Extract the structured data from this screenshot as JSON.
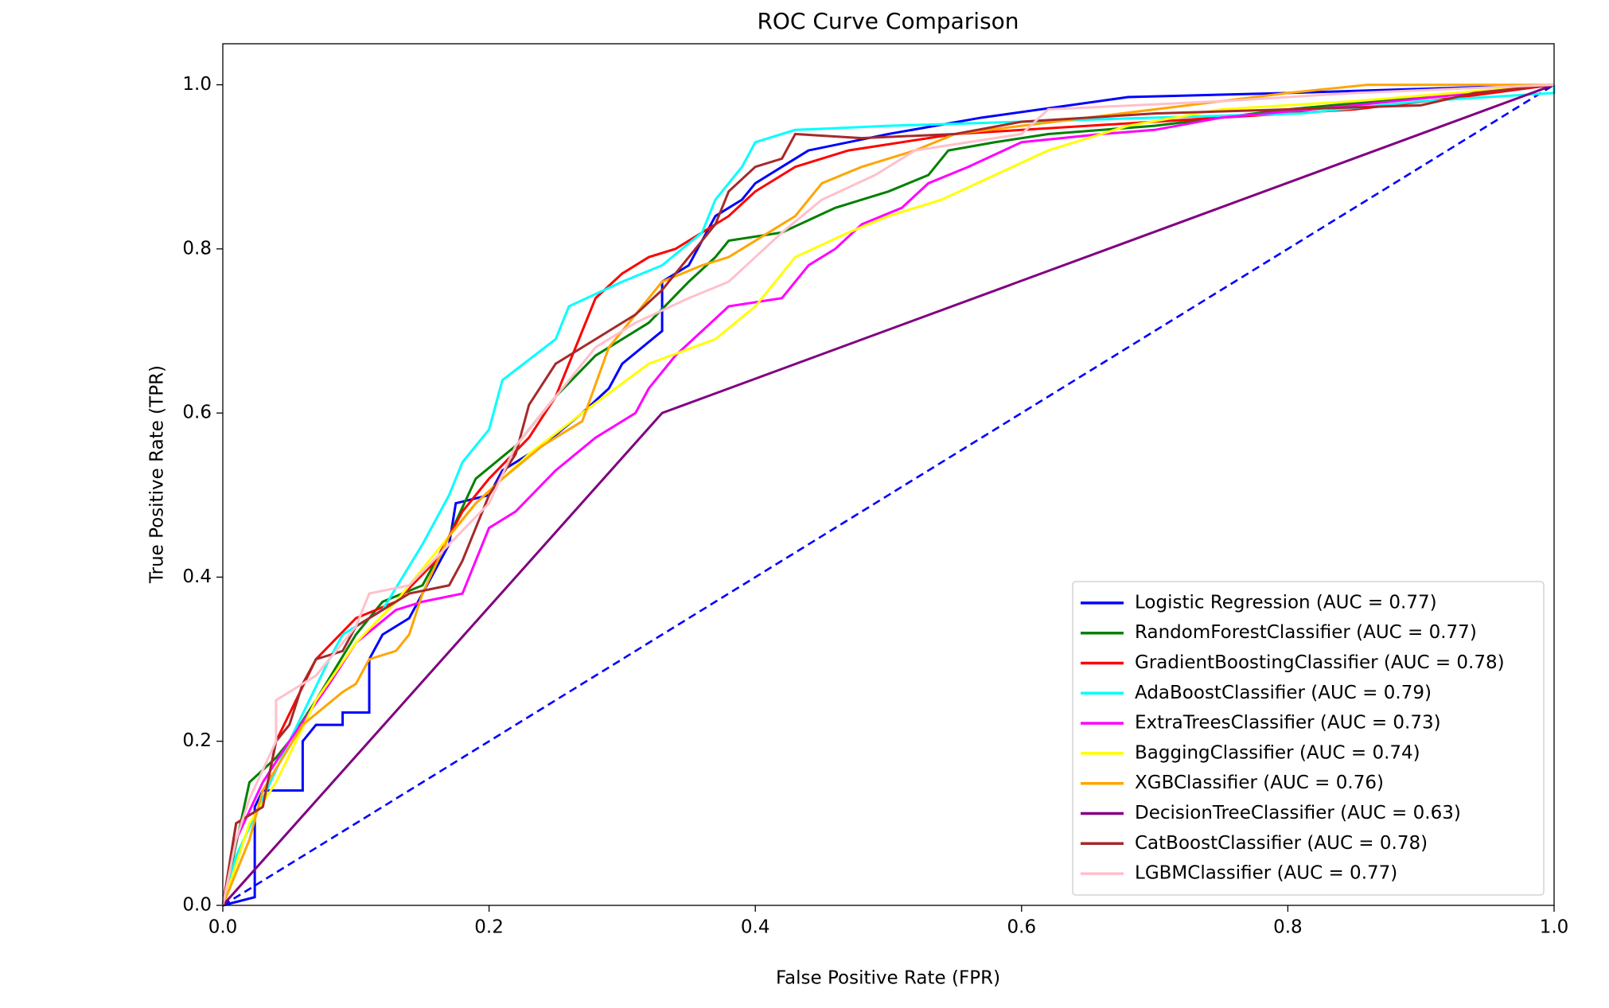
{
  "chart_data": {
    "type": "line",
    "title": "ROC Curve Comparison",
    "x_label": "False Positive Rate (FPR)",
    "y_label": "True Positive Rate (TPR)",
    "xlim": [
      0,
      1
    ],
    "ylim": [
      0,
      1.05
    ],
    "xticks": [
      {
        "value": 0,
        "label": "0.0"
      },
      {
        "value": 0.2,
        "label": "0.2"
      },
      {
        "value": 0.4,
        "label": "0.4"
      },
      {
        "value": 0.6,
        "label": "0.6"
      },
      {
        "value": 0.8,
        "label": "0.8"
      },
      {
        "value": 1,
        "label": "1.0"
      }
    ],
    "yticks": [
      {
        "value": 0,
        "label": "0.0"
      },
      {
        "value": 0.2,
        "label": "0.2"
      },
      {
        "value": 0.4,
        "label": "0.4"
      },
      {
        "value": 0.6,
        "label": "0.6"
      },
      {
        "value": 0.8,
        "label": "0.8"
      },
      {
        "value": 1,
        "label": "1.0"
      }
    ],
    "legend": "lower right",
    "series": [
      {
        "name": "Logistic Regression (AUC = 0.77)",
        "color": "blue",
        "x": [
          0,
          0.024,
          0.024,
          0.03,
          0.06,
          0.06,
          0.07,
          0.09,
          0.09,
          0.11,
          0.11,
          0.12,
          0.14,
          0.15,
          0.17,
          0.175,
          0.2,
          0.21,
          0.24,
          0.27,
          0.29,
          0.3,
          0.33,
          0.33,
          0.35,
          0.37,
          0.39,
          0.4,
          0.42,
          0.44,
          0.5,
          0.57,
          0.68,
          0.8,
          0.9,
          1
        ],
        "values": [
          0,
          0.01,
          0.12,
          0.14,
          0.14,
          0.2,
          0.22,
          0.22,
          0.235,
          0.235,
          0.3,
          0.33,
          0.35,
          0.38,
          0.44,
          0.49,
          0.5,
          0.53,
          0.56,
          0.6,
          0.63,
          0.66,
          0.7,
          0.76,
          0.78,
          0.84,
          0.86,
          0.88,
          0.9,
          0.92,
          0.94,
          0.96,
          0.985,
          0.99,
          0.995,
          1
        ]
      },
      {
        "name": "RandomForestClassifier (AUC = 0.77)",
        "color": "green",
        "x": [
          0,
          0.02,
          0.04,
          0.05,
          0.07,
          0.1,
          0.12,
          0.15,
          0.17,
          0.19,
          0.22,
          0.25,
          0.28,
          0.32,
          0.35,
          0.37,
          0.38,
          0.42,
          0.46,
          0.5,
          0.53,
          0.545,
          0.58,
          0.62,
          0.7,
          0.8,
          1
        ],
        "values": [
          0,
          0.15,
          0.18,
          0.2,
          0.25,
          0.33,
          0.37,
          0.39,
          0.45,
          0.52,
          0.56,
          0.62,
          0.67,
          0.71,
          0.76,
          0.79,
          0.81,
          0.82,
          0.85,
          0.87,
          0.89,
          0.92,
          0.93,
          0.94,
          0.95,
          0.97,
          1
        ]
      },
      {
        "name": "GradientBoostingClassifier (AUC = 0.78)",
        "color": "red",
        "x": [
          0,
          0.01,
          0.03,
          0.04,
          0.07,
          0.1,
          0.13,
          0.16,
          0.18,
          0.2,
          0.23,
          0.25,
          0.27,
          0.28,
          0.3,
          0.32,
          0.34,
          0.36,
          0.38,
          0.4,
          0.43,
          0.47,
          0.55,
          0.65,
          0.75,
          0.85,
          0.93,
          1
        ],
        "values": [
          0,
          0.1,
          0.12,
          0.2,
          0.3,
          0.35,
          0.37,
          0.42,
          0.48,
          0.52,
          0.57,
          0.62,
          0.7,
          0.74,
          0.77,
          0.79,
          0.8,
          0.82,
          0.84,
          0.87,
          0.9,
          0.92,
          0.94,
          0.95,
          0.96,
          0.97,
          0.985,
          1
        ]
      },
      {
        "name": "AdaBoostClassifier (AUC = 0.79)",
        "color": "cyan",
        "x": [
          0,
          0.01,
          0.03,
          0.05,
          0.08,
          0.09,
          0.12,
          0.15,
          0.17,
          0.18,
          0.2,
          0.21,
          0.25,
          0.26,
          0.3,
          0.33,
          0.36,
          0.37,
          0.39,
          0.4,
          0.43,
          0.5,
          0.6,
          0.7,
          0.81,
          0.9,
          1,
          1
        ],
        "values": [
          0,
          0.06,
          0.13,
          0.2,
          0.3,
          0.33,
          0.36,
          0.44,
          0.5,
          0.54,
          0.58,
          0.64,
          0.69,
          0.73,
          0.76,
          0.78,
          0.82,
          0.86,
          0.9,
          0.93,
          0.945,
          0.95,
          0.955,
          0.96,
          0.965,
          0.98,
          0.99,
          1
        ]
      },
      {
        "name": "ExtraTreesClassifier (AUC = 0.73)",
        "color": "magenta",
        "x": [
          0,
          0.01,
          0.03,
          0.05,
          0.08,
          0.1,
          0.13,
          0.15,
          0.18,
          0.19,
          0.2,
          0.22,
          0.25,
          0.28,
          0.31,
          0.32,
          0.34,
          0.36,
          0.38,
          0.42,
          0.44,
          0.46,
          0.48,
          0.51,
          0.53,
          0.56,
          0.6,
          0.66,
          0.7,
          0.75,
          0.85,
          1
        ],
        "values": [
          0,
          0.08,
          0.15,
          0.2,
          0.27,
          0.32,
          0.36,
          0.37,
          0.38,
          0.42,
          0.46,
          0.48,
          0.53,
          0.57,
          0.6,
          0.63,
          0.67,
          0.7,
          0.73,
          0.74,
          0.78,
          0.8,
          0.83,
          0.85,
          0.88,
          0.9,
          0.93,
          0.94,
          0.945,
          0.96,
          0.975,
          1
        ]
      },
      {
        "name": "BaggingClassifier (AUC = 0.74)",
        "color": "yellow",
        "x": [
          0,
          0.02,
          0.04,
          0.07,
          0.1,
          0.13,
          0.16,
          0.19,
          0.23,
          0.27,
          0.32,
          0.37,
          0.4,
          0.43,
          0.47,
          0.5,
          0.54,
          0.58,
          0.62,
          0.68,
          0.75,
          0.85,
          1
        ],
        "values": [
          0,
          0.1,
          0.15,
          0.25,
          0.32,
          0.37,
          0.43,
          0.49,
          0.55,
          0.6,
          0.66,
          0.69,
          0.73,
          0.79,
          0.82,
          0.84,
          0.86,
          0.89,
          0.92,
          0.95,
          0.97,
          0.98,
          1
        ]
      },
      {
        "name": "XGBClassifier (AUC = 0.76)",
        "color": "orange",
        "x": [
          0,
          0.02,
          0.03,
          0.06,
          0.09,
          0.1,
          0.11,
          0.13,
          0.14,
          0.15,
          0.17,
          0.19,
          0.21,
          0.24,
          0.27,
          0.29,
          0.31,
          0.33,
          0.36,
          0.38,
          0.4,
          0.43,
          0.45,
          0.48,
          0.52,
          0.55,
          0.6,
          0.7,
          0.8,
          0.86,
          1
        ],
        "values": [
          0,
          0.08,
          0.14,
          0.22,
          0.26,
          0.27,
          0.3,
          0.31,
          0.33,
          0.38,
          0.45,
          0.49,
          0.52,
          0.56,
          0.59,
          0.68,
          0.72,
          0.76,
          0.78,
          0.79,
          0.81,
          0.84,
          0.88,
          0.9,
          0.92,
          0.94,
          0.95,
          0.97,
          0.99,
          1,
          1
        ]
      },
      {
        "name": "DecisionTreeClassifier (AUC = 0.63)",
        "color": "purple",
        "x": [
          0,
          0.33,
          1
        ],
        "values": [
          0,
          0.6,
          1
        ]
      },
      {
        "name": "CatBoostClassifier (AUC = 0.78)",
        "color": "brown",
        "x": [
          0,
          0.01,
          0.03,
          0.04,
          0.05,
          0.06,
          0.07,
          0.09,
          0.1,
          0.12,
          0.14,
          0.17,
          0.18,
          0.2,
          0.22,
          0.23,
          0.25,
          0.27,
          0.29,
          0.31,
          0.33,
          0.35,
          0.37,
          0.38,
          0.4,
          0.42,
          0.43,
          0.48,
          0.55,
          0.6,
          0.7,
          0.8,
          0.9,
          0.94,
          1
        ],
        "values": [
          0,
          0.1,
          0.12,
          0.2,
          0.22,
          0.27,
          0.3,
          0.31,
          0.34,
          0.36,
          0.38,
          0.39,
          0.42,
          0.5,
          0.55,
          0.61,
          0.66,
          0.68,
          0.7,
          0.72,
          0.75,
          0.79,
          0.83,
          0.87,
          0.9,
          0.91,
          0.94,
          0.935,
          0.94,
          0.955,
          0.965,
          0.97,
          0.975,
          0.99,
          1
        ]
      },
      {
        "name": "LGBMClassifier (AUC = 0.77)",
        "color": "pink",
        "x": [
          0,
          0.01,
          0.02,
          0.04,
          0.04,
          0.07,
          0.1,
          0.11,
          0.14,
          0.17,
          0.2,
          0.22,
          0.25,
          0.28,
          0.31,
          0.35,
          0.38,
          0.4,
          0.42,
          0.45,
          0.49,
          0.52,
          0.6,
          0.62,
          0.75,
          0.85,
          1
        ],
        "values": [
          0,
          0.08,
          0.13,
          0.2,
          0.25,
          0.28,
          0.34,
          0.38,
          0.39,
          0.44,
          0.49,
          0.56,
          0.62,
          0.68,
          0.71,
          0.74,
          0.76,
          0.79,
          0.82,
          0.86,
          0.89,
          0.92,
          0.94,
          0.97,
          0.98,
          0.99,
          1
        ]
      }
    ],
    "reference_line": {
      "x": [
        0,
        1
      ],
      "values": [
        0,
        1
      ],
      "color": "blue",
      "dashed": true
    }
  }
}
